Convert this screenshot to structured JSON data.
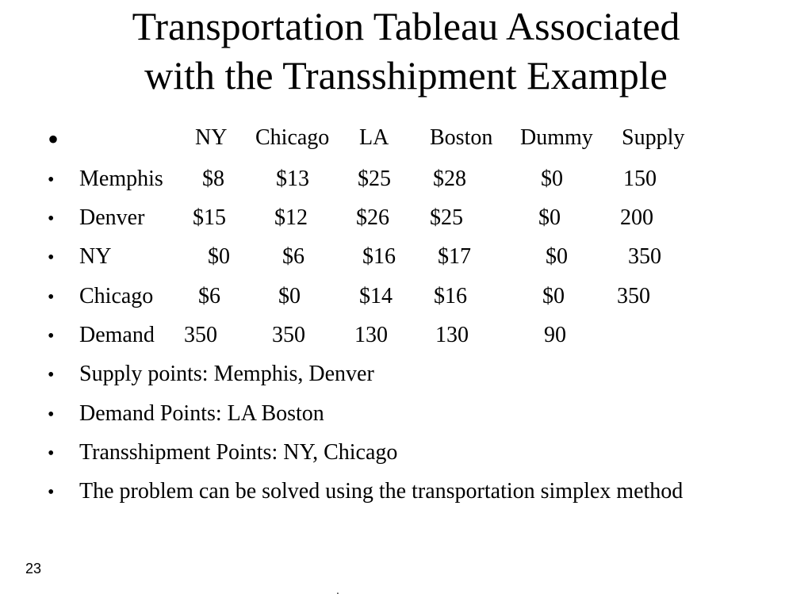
{
  "title": {
    "line1": "Transportation Tableau Associated",
    "line2": "with the Transshipment Example"
  },
  "bullet_char": "•",
  "header_row": [
    "NY",
    "Chicago",
    "LA",
    "Boston",
    "Dummy",
    "Supply"
  ],
  "table_rows": [
    {
      "label": "Memphis",
      "cells": [
        "$8",
        "$13",
        "$25",
        "$28",
        "$0",
        "150"
      ]
    },
    {
      "label": "Denver",
      "cells": [
        "$15",
        "$12",
        "$26",
        "$25",
        "$0",
        "200"
      ]
    },
    {
      "label": "NY",
      "cells": [
        "$0",
        "$6",
        "$16",
        "$17",
        "$0",
        "350"
      ]
    },
    {
      "label": "Chicago",
      "cells": [
        "$6",
        "$0",
        "$14",
        "$16",
        "$0",
        "350"
      ]
    },
    {
      "label": "Demand",
      "cells": [
        "350",
        "350",
        "130",
        "130",
        "90"
      ]
    }
  ],
  "notes": [
    "Supply points: Memphis, Denver",
    "Demand Points: LA Boston",
    "Transshipment Points: NY, Chicago",
    "The problem can be solved using the transportation simplex method"
  ],
  "page_number": "23",
  "footer_dot": "."
}
